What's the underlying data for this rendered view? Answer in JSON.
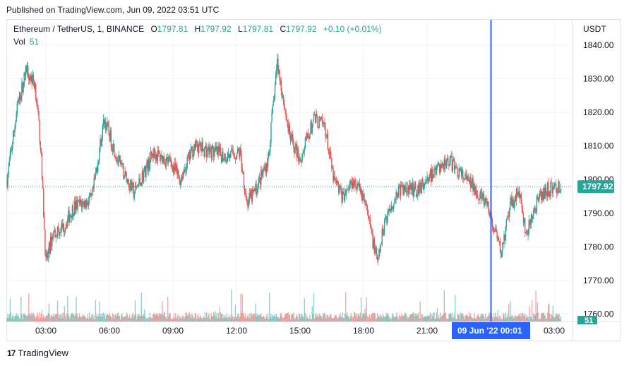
{
  "published": "Published on TradingView.com, Jun 09, 2022 03:51 UTC",
  "symbol": "Ethereum / TetherUS, 1, BINANCE",
  "ohlc": {
    "o_label": "O",
    "o": "1797.81",
    "h_label": "H",
    "h": "1797.92",
    "l_label": "L",
    "l": "1797.81",
    "c_label": "C",
    "c": "1797.92",
    "change": "+0.10 (+0.01%)"
  },
  "volume": {
    "label": "Vol",
    "value": "51"
  },
  "currency": "USDT",
  "price_tag": "1797.92",
  "volume_tag": "51",
  "crosshair_time": "09 Jun '22   00:01",
  "footer": {
    "brand": "TradingView",
    "logo_icon": "tradingview-logo-icon"
  },
  "colors": {
    "up": "#26a69a",
    "down": "#ef5350",
    "crosshair": "#2962ff",
    "text": "#131722"
  },
  "chart_data": {
    "type": "candlestick",
    "title": "Ethereum / TetherUS, 1, BINANCE",
    "interval_minutes": 1,
    "y_axis": {
      "label": "USDT",
      "ticks": [
        1840,
        1830,
        1820,
        1810,
        1800,
        1790,
        1780,
        1770,
        1760
      ],
      "range": [
        1757,
        1845
      ]
    },
    "x_axis": {
      "ticks": [
        "03:00",
        "06:00",
        "09:00",
        "12:00",
        "15:00",
        "18:00",
        "21:00",
        "00:01",
        "03:00"
      ]
    },
    "last_price": 1797.92,
    "grid": true,
    "price_anchors": [
      {
        "t": "01:10",
        "p": 1800
      },
      {
        "t": "01:40",
        "p": 1822
      },
      {
        "t": "02:05",
        "p": 1833
      },
      {
        "t": "02:30",
        "p": 1828
      },
      {
        "t": "02:45",
        "p": 1810
      },
      {
        "t": "03:00",
        "p": 1775
      },
      {
        "t": "03:20",
        "p": 1784
      },
      {
        "t": "03:50",
        "p": 1786
      },
      {
        "t": "04:20",
        "p": 1792
      },
      {
        "t": "05:10",
        "p": 1794
      },
      {
        "t": "05:45",
        "p": 1818
      },
      {
        "t": "06:30",
        "p": 1804
      },
      {
        "t": "07:10",
        "p": 1796
      },
      {
        "t": "08:05",
        "p": 1808
      },
      {
        "t": "08:55",
        "p": 1805
      },
      {
        "t": "09:20",
        "p": 1800
      },
      {
        "t": "10:00",
        "p": 1810
      },
      {
        "t": "11:30",
        "p": 1807
      },
      {
        "t": "12:10",
        "p": 1808
      },
      {
        "t": "12:30",
        "p": 1793
      },
      {
        "t": "12:55",
        "p": 1797
      },
      {
        "t": "13:30",
        "p": 1806
      },
      {
        "t": "13:55",
        "p": 1835
      },
      {
        "t": "14:30",
        "p": 1813
      },
      {
        "t": "15:00",
        "p": 1806
      },
      {
        "t": "15:40",
        "p": 1818
      },
      {
        "t": "16:10",
        "p": 1816
      },
      {
        "t": "16:35",
        "p": 1800
      },
      {
        "t": "17:00",
        "p": 1795
      },
      {
        "t": "17:30",
        "p": 1800
      },
      {
        "t": "18:00",
        "p": 1795
      },
      {
        "t": "18:40",
        "p": 1775
      },
      {
        "t": "19:00",
        "p": 1788
      },
      {
        "t": "19:40",
        "p": 1797
      },
      {
        "t": "20:30",
        "p": 1797
      },
      {
        "t": "21:10",
        "p": 1801
      },
      {
        "t": "22:00",
        "p": 1806
      },
      {
        "t": "22:40",
        "p": 1801
      },
      {
        "t": "23:20",
        "p": 1797
      },
      {
        "t": "23:50",
        "p": 1792
      },
      {
        "t": "00:30",
        "p": 1778
      },
      {
        "t": "00:55",
        "p": 1792
      },
      {
        "t": "01:20",
        "p": 1797
      },
      {
        "t": "01:40",
        "p": 1783
      },
      {
        "t": "02:10",
        "p": 1793
      },
      {
        "t": "02:40",
        "p": 1797
      },
      {
        "t": "03:20",
        "p": 1798
      }
    ]
  }
}
